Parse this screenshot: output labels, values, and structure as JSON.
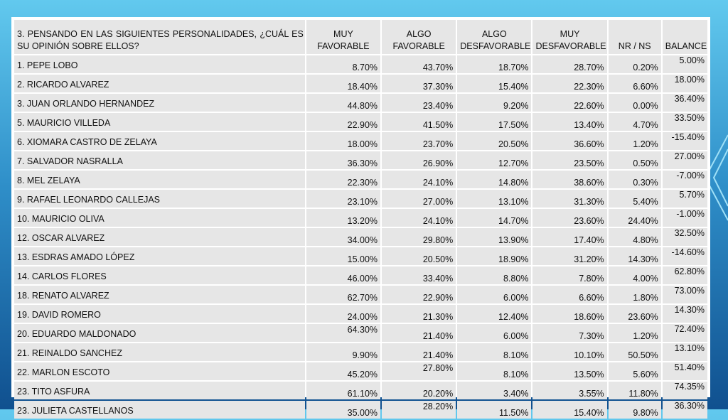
{
  "table": {
    "question": "3.   PENSANDO  EN  LAS   SIGUIENTES  PERSONALIDADES, ¿CUÁL  ES SU OPINIÓN SOBRE ELLOS?",
    "headers": [
      "MUY FAVORABLE",
      "ALGO FAVORABLE",
      "ALGO DESFAVORABLE",
      "MUY DESFAVORABLE",
      "NR / NS",
      "BALANCE"
    ],
    "rows": [
      {
        "name": "1. PEPE LOBO",
        "values": [
          "8.70%",
          "43.70%",
          "18.70%",
          "28.70%",
          "0.20%"
        ],
        "balance": "5.00%"
      },
      {
        "name": "2. RICARDO ALVAREZ",
        "values": [
          "18.40%",
          "37.30%",
          "15.40%",
          "22.30%",
          "6.60%"
        ],
        "balance": "18.00%"
      },
      {
        "name": "3. JUAN ORLANDO HERNANDEZ",
        "values": [
          "44.80%",
          "23.40%",
          "9.20%",
          "22.60%",
          "0.00%"
        ],
        "balance": "36.40%"
      },
      {
        "name": "5. MAURICIO VILLEDA",
        "values": [
          "22.90%",
          "41.50%",
          "17.50%",
          "13.40%",
          "4.70%"
        ],
        "balance": "33.50%"
      },
      {
        "name": "6. XIOMARA CASTRO DE ZELAYA",
        "values": [
          "18.00%",
          "23.70%",
          "20.50%",
          "36.60%",
          "1.20%"
        ],
        "balance": "-15.40%"
      },
      {
        "name": "7. SALVADOR NASRALLA",
        "values": [
          "36.30%",
          "26.90%",
          "12.70%",
          "23.50%",
          "0.50%"
        ],
        "balance": "27.00%"
      },
      {
        "name": "8. MEL ZELAYA",
        "values": [
          "22.30%",
          "24.10%",
          "14.80%",
          "38.60%",
          "0.30%"
        ],
        "balance": "-7.00%"
      },
      {
        "name": "9. RAFAEL LEONARDO CALLEJAS",
        "values": [
          "23.10%",
          "27.00%",
          "13.10%",
          "31.30%",
          "5.40%"
        ],
        "balance": "5.70%"
      },
      {
        "name": "10. MAURICIO OLIVA",
        "values": [
          "13.20%",
          "24.10%",
          "14.70%",
          "23.60%",
          "24.40%"
        ],
        "balance": "-1.00%"
      },
      {
        "name": "12. OSCAR ALVAREZ",
        "values": [
          "34.00%",
          "29.80%",
          "13.90%",
          "17.40%",
          "4.80%"
        ],
        "balance": "32.50%"
      },
      {
        "name": "13. ESDRAS AMADO LÓPEZ",
        "values": [
          "15.00%",
          "20.50%",
          "18.90%",
          "31.20%",
          "14.30%"
        ],
        "balance": "-14.60%"
      },
      {
        "name": "14. CARLOS FLORES",
        "values": [
          "46.00%",
          "33.40%",
          "8.80%",
          "7.80%",
          "4.00%"
        ],
        "balance": "62.80%"
      },
      {
        "name": "18. RENATO ALVAREZ",
        "values": [
          "62.70%",
          "22.90%",
          "6.00%",
          "6.60%",
          "1.80%"
        ],
        "balance": "73.00%"
      },
      {
        "name": "19. DAVID ROMERO",
        "values": [
          "24.00%",
          "21.30%",
          "12.40%",
          "18.60%",
          "23.60%"
        ],
        "balance": "14.30%"
      },
      {
        "name": "20. EDUARDO MALDONADO",
        "values": [
          "64.30%",
          "21.40%",
          "6.00%",
          "7.30%",
          "1.20%"
        ],
        "balance": "72.40%"
      },
      {
        "name": "21. REINALDO SANCHEZ",
        "values": [
          "9.90%",
          "21.40%",
          "8.10%",
          "10.10%",
          "50.50%"
        ],
        "balance": "13.10%"
      },
      {
        "name": "22. MARLON ESCOTO",
        "values": [
          "45.20%",
          "27.80%",
          "8.10%",
          "13.50%",
          "5.60%"
        ],
        "balance": "51.40%"
      },
      {
        "name": "23. TITO ASFURA",
        "values": [
          "61.10%",
          "20.20%",
          "3.40%",
          "3.55%",
          "11.80%"
        ],
        "balance": "74.35%"
      },
      {
        "name": "23. JULIETA CASTELLANOS",
        "values": [
          "35.00%",
          "28.20%",
          "11.50%",
          "15.40%",
          "9.80%"
        ],
        "balance": "36.30%"
      }
    ]
  }
}
